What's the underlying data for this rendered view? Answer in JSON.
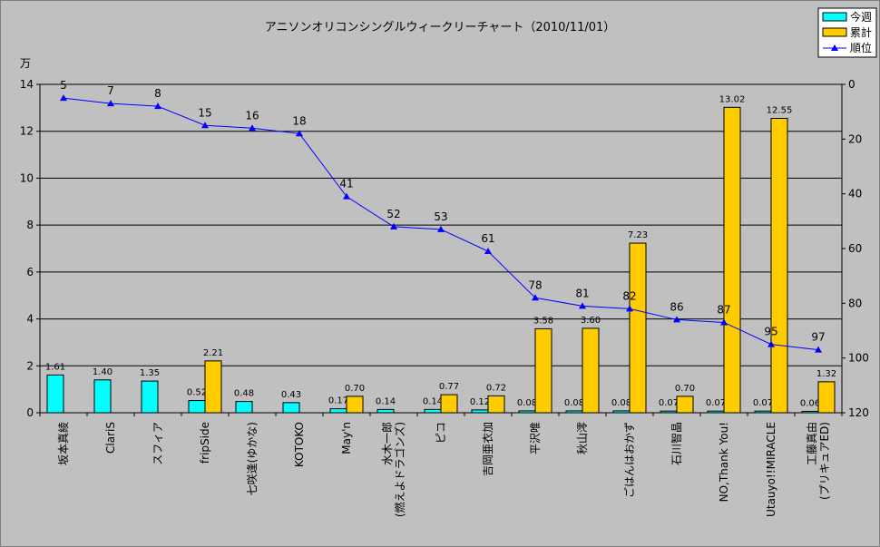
{
  "chart_data": {
    "type": "bar",
    "title": "アニソンオリコンシングルウィークリーチャート（2010/11/01）",
    "ylabel": "万",
    "ylim": [
      0,
      14
    ],
    "yticks": [
      0,
      2,
      4,
      6,
      8,
      10,
      12,
      14
    ],
    "y2lim": [
      120,
      0
    ],
    "y2ticks": [
      0,
      20,
      40,
      60,
      80,
      100,
      120
    ],
    "grid": true,
    "legend_position": "top-right",
    "categories": [
      [
        "坂本真綾"
      ],
      [
        "ClariS"
      ],
      [
        "スフィア"
      ],
      [
        "fripSide"
      ],
      [
        "七咲逢(ゆかな)"
      ],
      [
        "KOTOKO"
      ],
      [
        "May'n"
      ],
      [
        "水木一郎",
        "(燃えよドラゴンズ)"
      ],
      [
        "ピコ"
      ],
      [
        "吉岡亜衣加"
      ],
      [
        "平沢唯"
      ],
      [
        "秋山澪"
      ],
      [
        "ごはんはおかず"
      ],
      [
        "石川智晶"
      ],
      [
        "NO,Thank You!"
      ],
      [
        "Utauyo!!MIRACLE"
      ],
      [
        "工藤真由",
        "(プリキュアED)"
      ]
    ],
    "series": [
      {
        "name": "今週",
        "type": "bar",
        "color": "#00ffff",
        "values": [
          1.61,
          1.4,
          1.35,
          0.52,
          0.48,
          0.43,
          0.17,
          0.14,
          0.14,
          0.12,
          0.08,
          0.08,
          0.08,
          0.07,
          0.07,
          0.07,
          0.06
        ],
        "labels": [
          "1.61",
          "1.40",
          "1.35",
          "0.52",
          "0.48",
          "0.43",
          "0.17",
          "0.14",
          "0.14",
          "0.12",
          "0.08",
          "0.08",
          "0.08",
          "0.07",
          "0.07",
          "0.07",
          "0.06"
        ]
      },
      {
        "name": "累計",
        "type": "bar",
        "color": "#ffcc00",
        "values": [
          null,
          null,
          null,
          2.21,
          null,
          null,
          0.7,
          null,
          0.77,
          0.72,
          3.58,
          3.6,
          7.23,
          0.7,
          13.02,
          12.55,
          1.32
        ],
        "labels": [
          null,
          null,
          null,
          "2.21",
          null,
          null,
          "0.70",
          null,
          "0.77",
          "0.72",
          "3.58",
          "3.60",
          "7.23",
          "0.70",
          "13.02",
          "12.55",
          "1.32"
        ]
      },
      {
        "name": "順位",
        "type": "line",
        "axis": "right",
        "color": "#0000ff",
        "marker": "triangle",
        "values": [
          5,
          7,
          8,
          15,
          16,
          18,
          41,
          52,
          53,
          61,
          78,
          81,
          82,
          86,
          87,
          95,
          97
        ],
        "labels": [
          "5",
          "7",
          "8",
          "15",
          "16",
          "18",
          "41",
          "52",
          "53",
          "61",
          "78",
          "81",
          "82",
          "86",
          "87",
          "95",
          "97"
        ]
      }
    ]
  }
}
